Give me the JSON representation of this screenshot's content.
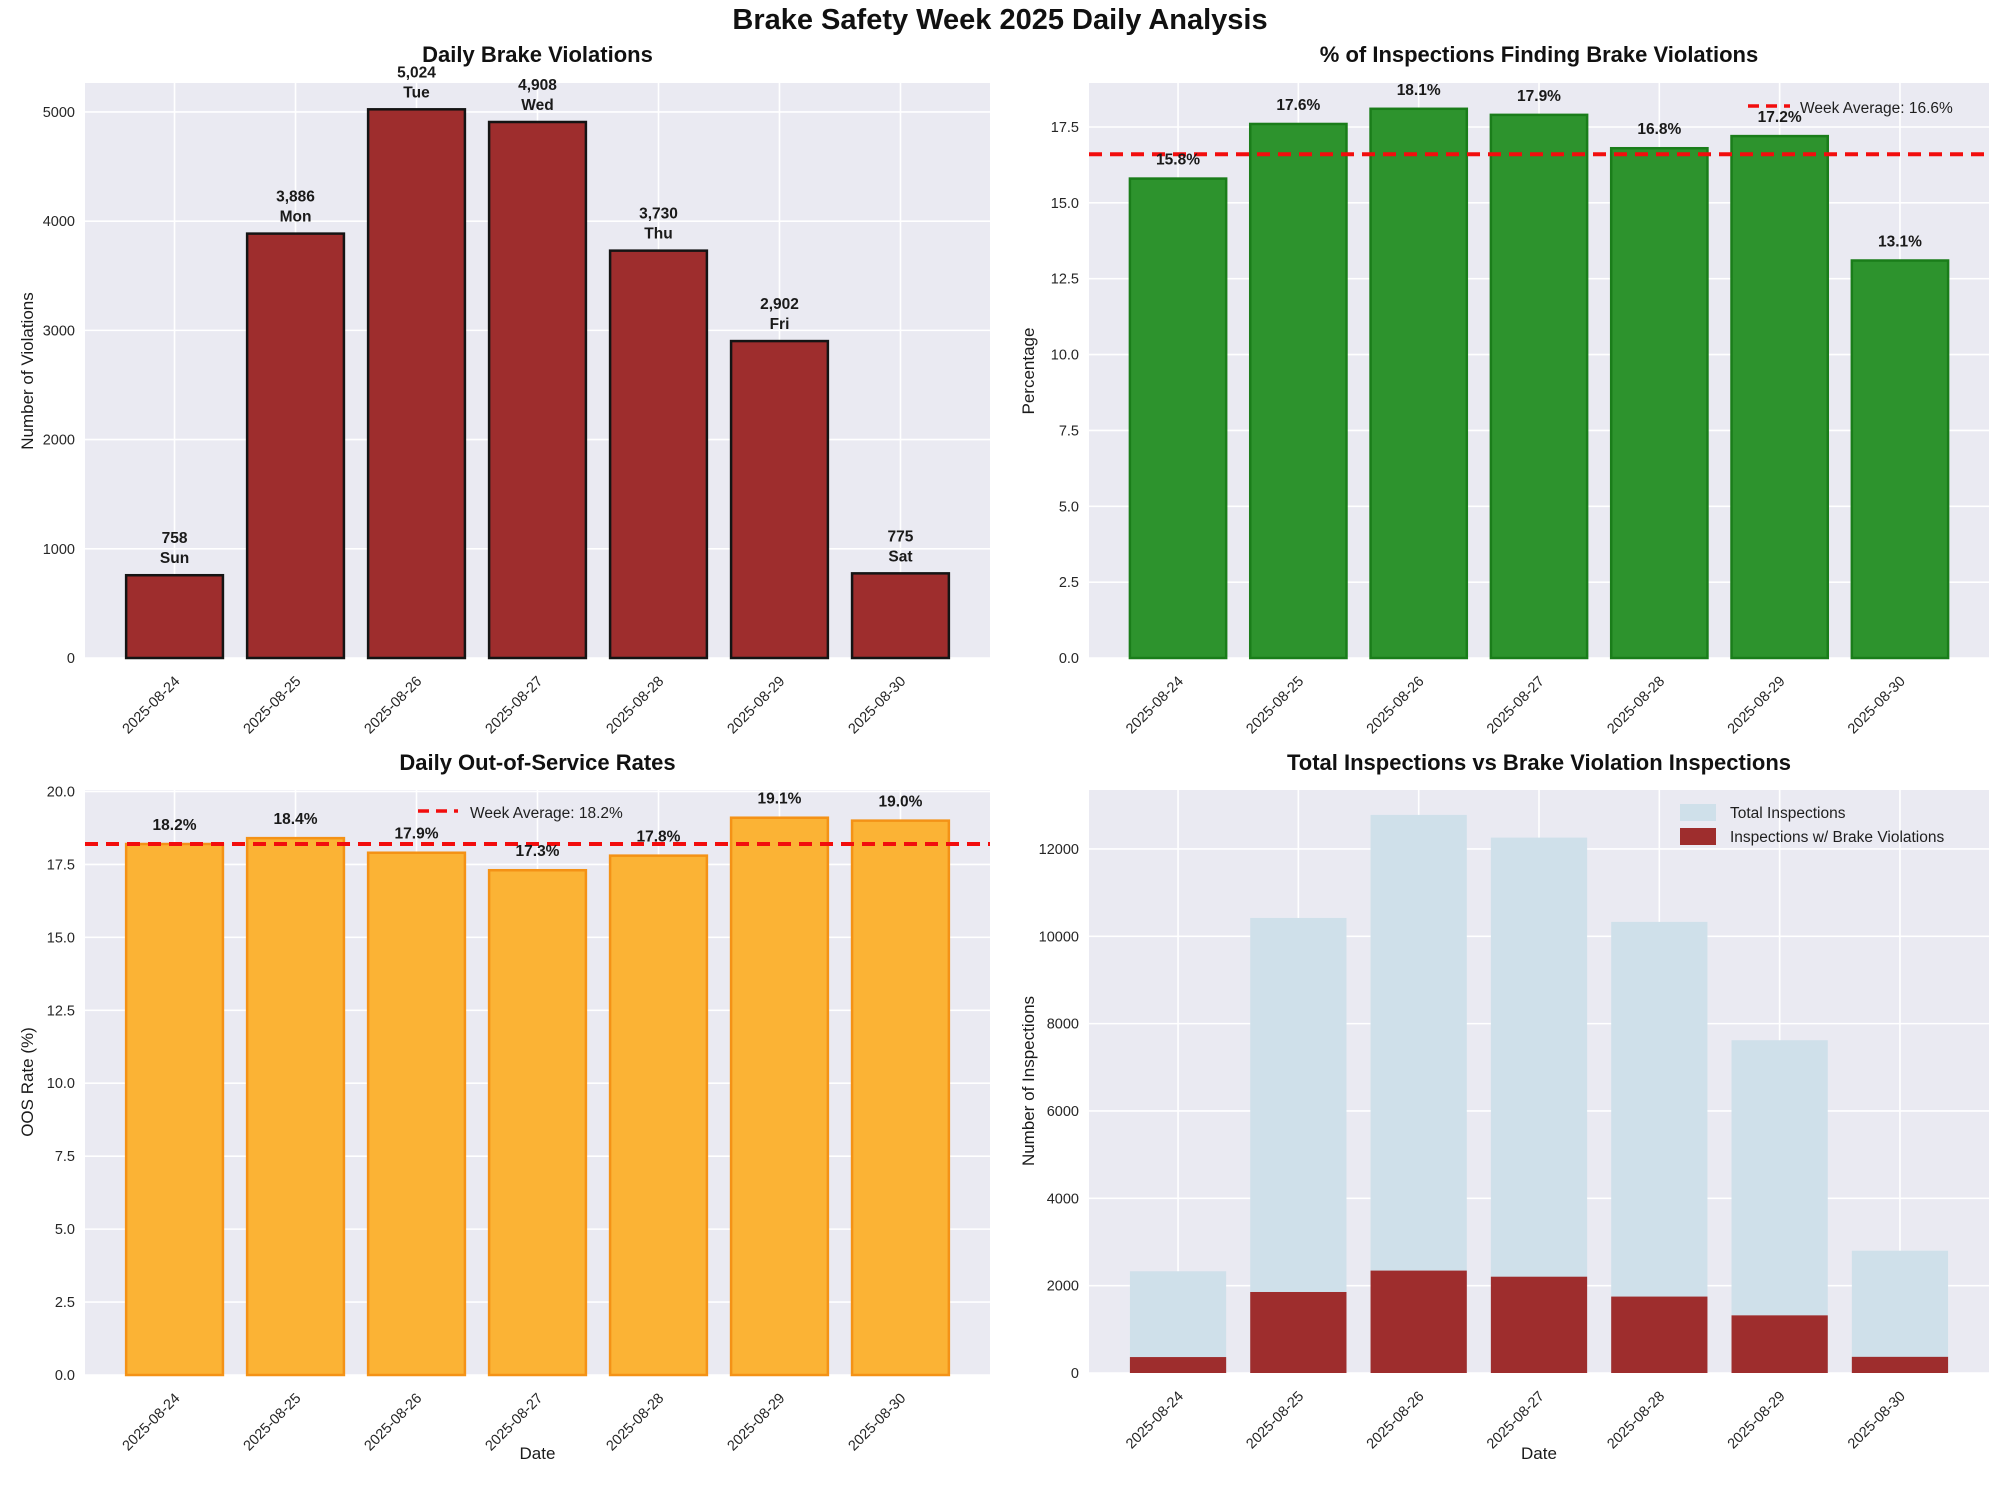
{
  "main_title": "Brake Safety Week 2025 Daily Analysis",
  "colors": {
    "figure_bg": "#ffffff",
    "axes_bg": "#eaeaf2",
    "grid": "#ffffff",
    "avg_line": "#f20d0d",
    "violations_bar": "#9e2d2d",
    "violations_edge": "#141414",
    "pct_bar": "#2d932d",
    "pct_edge": "#1a7d1a",
    "oos_bar": "#fbb335",
    "oos_edge": "#f49216",
    "total_inspections_bar": "#cfe0ea",
    "brake_violation_bar": "#9e2d2d",
    "tick_text": "#262626"
  },
  "dates": [
    "2025-08-24",
    "2025-08-25",
    "2025-08-26",
    "2025-08-27",
    "2025-08-28",
    "2025-08-29",
    "2025-08-30"
  ],
  "days": [
    "Sun",
    "Mon",
    "Tue",
    "Wed",
    "Thu",
    "Fri",
    "Sat"
  ],
  "chart_data": [
    {
      "id": "daily-brake-violations",
      "type": "bar",
      "title": "Daily Brake Violations",
      "ylabel": "Number of Violations",
      "xlabel": "",
      "categories": [
        "2025-08-24",
        "2025-08-25",
        "2025-08-26",
        "2025-08-27",
        "2025-08-28",
        "2025-08-29",
        "2025-08-30"
      ],
      "values": [
        758,
        3886,
        5024,
        4908,
        3730,
        2902,
        775
      ],
      "value_labels": [
        "758",
        "3,886",
        "5,024",
        "4,908",
        "3,730",
        "2,902",
        "775"
      ],
      "day_labels": [
        "Sun",
        "Mon",
        "Tue",
        "Wed",
        "Thu",
        "Fri",
        "Sat"
      ],
      "ylim": [
        0,
        5265
      ],
      "yticks": [
        0,
        1000,
        2000,
        3000,
        4000,
        5000
      ],
      "ytick_labels": [
        "0",
        "1000",
        "2000",
        "3000",
        "4000",
        "5000"
      ],
      "grid": true,
      "bar_color": "#9e2d2d",
      "bar_edge": "#141414"
    },
    {
      "id": "pct-inspections-brake-violations",
      "type": "bar",
      "title": "% of Inspections Finding Brake Violations",
      "ylabel": "Percentage",
      "xlabel": "",
      "categories": [
        "2025-08-24",
        "2025-08-25",
        "2025-08-26",
        "2025-08-27",
        "2025-08-28",
        "2025-08-29",
        "2025-08-30"
      ],
      "values": [
        15.8,
        17.6,
        18.1,
        17.9,
        16.8,
        17.2,
        13.1
      ],
      "value_labels": [
        "15.8%",
        "17.6%",
        "18.1%",
        "17.9%",
        "16.8%",
        "17.2%",
        "13.1%"
      ],
      "ylim": [
        0,
        18.95
      ],
      "yticks": [
        0,
        2.5,
        5,
        7.5,
        10,
        12.5,
        15,
        17.5
      ],
      "ytick_labels": [
        "0.0",
        "2.5",
        "5.0",
        "7.5",
        "10.0",
        "12.5",
        "15.0",
        "17.5"
      ],
      "grid": true,
      "avg_line": {
        "value": 16.6,
        "label": "Week Average: 16.6%",
        "color": "#f20d0d"
      },
      "legend_position": "upper-right",
      "bar_color": "#2d932d",
      "bar_edge": "#1a7d1a"
    },
    {
      "id": "daily-oos-rates",
      "type": "bar",
      "title": "Daily Out-of-Service Rates",
      "ylabel": "OOS Rate (%)",
      "xlabel": "Date",
      "categories": [
        "2025-08-24",
        "2025-08-25",
        "2025-08-26",
        "2025-08-27",
        "2025-08-28",
        "2025-08-29",
        "2025-08-30"
      ],
      "values": [
        18.2,
        18.4,
        17.9,
        17.3,
        17.8,
        19.1,
        19.0
      ],
      "value_labels": [
        "18.2%",
        "18.4%",
        "17.9%",
        "17.3%",
        "17.8%",
        "19.1%",
        "19.0%"
      ],
      "ylim": [
        0,
        20.05
      ],
      "yticks": [
        0,
        2.5,
        5,
        7.5,
        10,
        12.5,
        15,
        17.5,
        20
      ],
      "ytick_labels": [
        "0.0",
        "2.5",
        "5.0",
        "7.5",
        "10.0",
        "12.5",
        "15.0",
        "17.5",
        "20.0"
      ],
      "grid": true,
      "avg_line": {
        "value": 18.2,
        "label": "Week Average: 18.2%",
        "color": "#f20d0d"
      },
      "legend_position": "upper-center",
      "bar_color": "#fbb335",
      "bar_edge": "#f49216"
    },
    {
      "id": "total-vs-brake-violation-inspections",
      "type": "bar",
      "title": "Total Inspections vs Brake Violation Inspections",
      "ylabel": "Number of Inspections",
      "xlabel": "Date",
      "categories": [
        "2025-08-24",
        "2025-08-25",
        "2025-08-26",
        "2025-08-27",
        "2025-08-28",
        "2025-08-29",
        "2025-08-30"
      ],
      "series": [
        {
          "name": "Total Inspections",
          "values": [
            2330,
            10420,
            12780,
            12260,
            10330,
            7620,
            2800
          ],
          "color": "#cfe0ea"
        },
        {
          "name": "Inspections w/ Brake Violations",
          "values": [
            365,
            1855,
            2345,
            2205,
            1750,
            1320,
            370
          ],
          "color": "#9e2d2d"
        }
      ],
      "ylim": [
        0,
        13350
      ],
      "yticks": [
        0,
        2000,
        4000,
        6000,
        8000,
        10000,
        12000
      ],
      "ytick_labels": [
        "0",
        "2000",
        "4000",
        "6000",
        "8000",
        "10000",
        "12000"
      ],
      "grid": true,
      "legend_position": "upper-right",
      "values_note": "series values estimated from bar heights"
    }
  ]
}
